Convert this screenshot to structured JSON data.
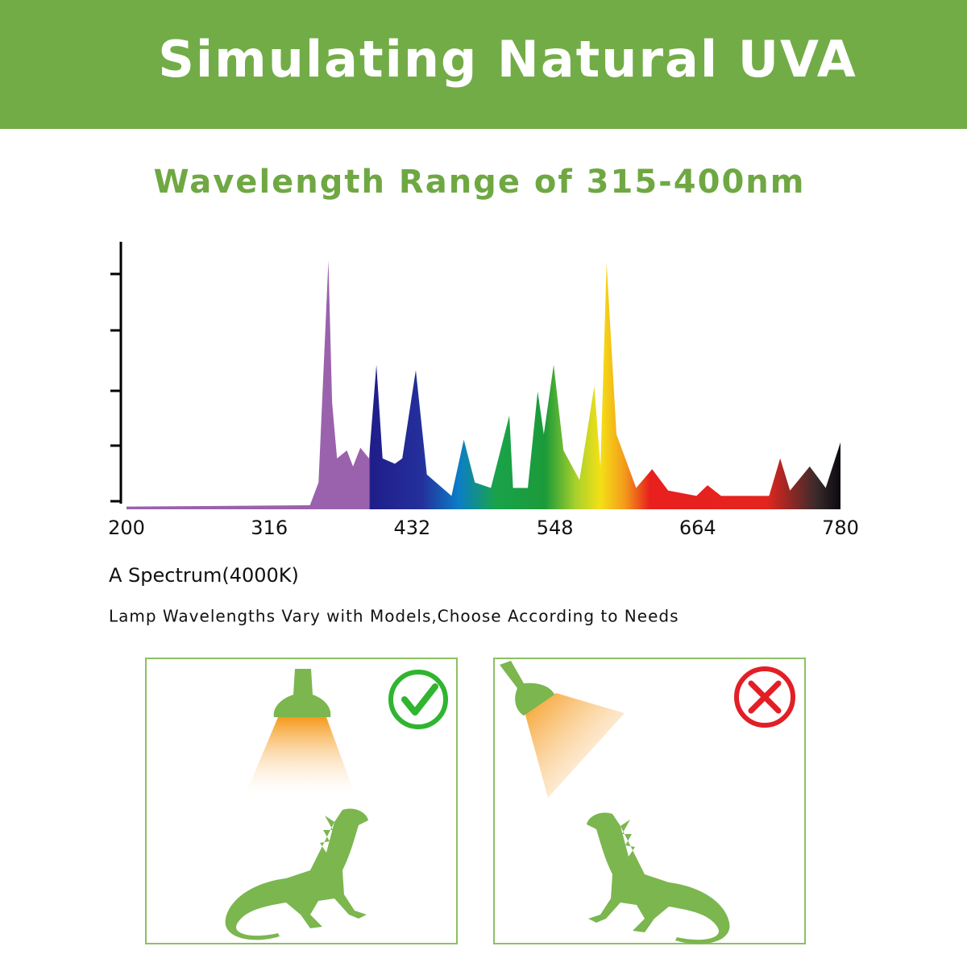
{
  "header": {
    "title": "Simulating Natural UVA"
  },
  "subtitle": "Wavelength Range of 315-400nm",
  "chart_data": {
    "type": "area",
    "x": [
      200,
      349,
      356,
      364,
      367,
      371,
      379,
      384,
      390,
      397,
      403,
      408,
      418,
      424,
      435,
      444,
      464,
      474,
      483,
      496,
      511,
      514,
      526,
      534,
      539,
      547,
      555,
      568,
      580,
      585,
      590,
      598,
      614,
      627,
      640,
      663,
      672,
      683,
      722,
      731,
      739,
      755,
      768,
      780
    ],
    "values": [
      1,
      1.5,
      10,
      93,
      40,
      19,
      22,
      16,
      23,
      19,
      54,
      19,
      17,
      19,
      52,
      13,
      5,
      26,
      10,
      8,
      35,
      8,
      8,
      44,
      28,
      54,
      22,
      11,
      46,
      16,
      92,
      28,
      8,
      15,
      7,
      5,
      9,
      5,
      5,
      19,
      7,
      16,
      8,
      25
    ],
    "xlim": [
      200,
      780
    ],
    "ylim": [
      0,
      100
    ],
    "xticks": [
      200,
      316,
      432,
      548,
      664,
      780
    ],
    "color_stops": [
      {
        "x": 200,
        "color": "#9a62ad"
      },
      {
        "x": 397,
        "color": "#9a62ad"
      },
      {
        "x": 398,
        "color": "#1f1d8a"
      },
      {
        "x": 440,
        "color": "#24309c"
      },
      {
        "x": 470,
        "color": "#0b7ec6"
      },
      {
        "x": 500,
        "color": "#1aa34a"
      },
      {
        "x": 540,
        "color": "#1b9a3a"
      },
      {
        "x": 565,
        "color": "#a8d12b"
      },
      {
        "x": 585,
        "color": "#f4e017"
      },
      {
        "x": 605,
        "color": "#f39a1a"
      },
      {
        "x": 625,
        "color": "#e8201e"
      },
      {
        "x": 720,
        "color": "#e4251f"
      },
      {
        "x": 760,
        "color": "#3a2b2b"
      },
      {
        "x": 780,
        "color": "#0a0a10"
      }
    ]
  },
  "caption": "A Spectrum(4000K)",
  "note": "Lamp Wavelengths Vary with Models,Choose According to Needs"
}
